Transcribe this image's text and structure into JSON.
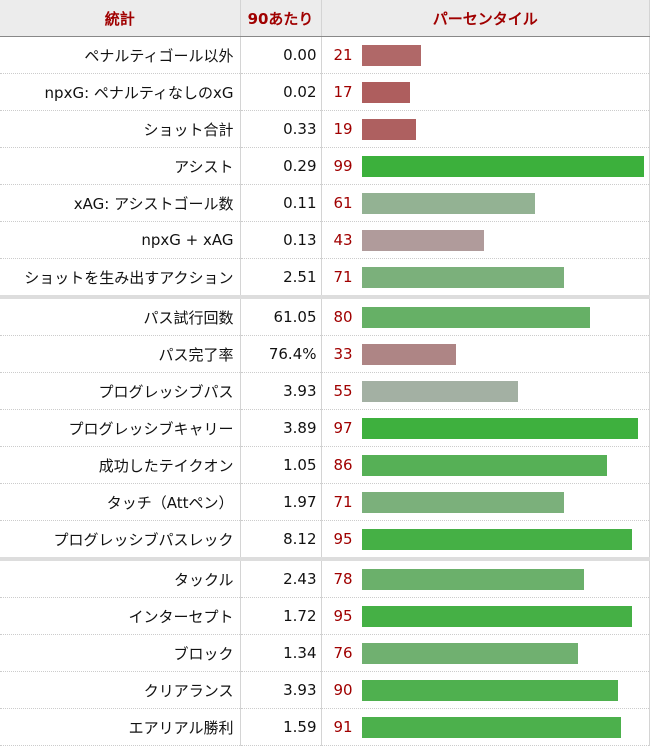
{
  "header": {
    "stat": "統計",
    "per90": "90あたり",
    "percentile": "パーセンタイル"
  },
  "rows": [
    {
      "stat": "ペナルティゴール以外",
      "per90": "0.00",
      "pct": 21,
      "color": "#b06868"
    },
    {
      "stat": "npxG: ペナルティなしのxG",
      "per90": "0.02",
      "pct": 17,
      "color": "#ae5e5e"
    },
    {
      "stat": "ショット合計",
      "per90": "0.33",
      "pct": 19,
      "color": "#ae6060"
    },
    {
      "stat": "アシスト",
      "per90": "0.29",
      "pct": 99,
      "color": "#3cb03c"
    },
    {
      "stat": "xAG: アシストゴール数",
      "per90": "0.11",
      "pct": 61,
      "color": "#93b293"
    },
    {
      "stat": "npxG + xAG",
      "per90": "0.13",
      "pct": 43,
      "color": "#b09b9b"
    },
    {
      "stat": "ショットを生み出すアクション",
      "per90": "2.51",
      "pct": 71,
      "color": "#7bb07b"
    },
    {
      "stat": "パス試行回数",
      "per90": "61.05",
      "pct": 80,
      "color": "#66b066",
      "sep": true
    },
    {
      "stat": "パス完了率",
      "per90": "76.4%",
      "pct": 33,
      "color": "#ae8585"
    },
    {
      "stat": "プログレッシブパス",
      "per90": "3.93",
      "pct": 55,
      "color": "#a3b0a3"
    },
    {
      "stat": "プログレッシブキャリー",
      "per90": "3.89",
      "pct": 97,
      "color": "#3eb03e"
    },
    {
      "stat": "成功したテイクオン",
      "per90": "1.05",
      "pct": 86,
      "color": "#56b056"
    },
    {
      "stat": "タッチ（Attペン）",
      "per90": "1.97",
      "pct": 71,
      "color": "#7bb07b"
    },
    {
      "stat": "プログレッシブパスレック",
      "per90": "8.12",
      "pct": 95,
      "color": "#45b045"
    },
    {
      "stat": "タックル",
      "per90": "2.43",
      "pct": 78,
      "color": "#6bb06b",
      "sep": true
    },
    {
      "stat": "インターセプト",
      "per90": "1.72",
      "pct": 95,
      "color": "#45b045"
    },
    {
      "stat": "ブロック",
      "per90": "1.34",
      "pct": 76,
      "color": "#70b070"
    },
    {
      "stat": "クリアランス",
      "per90": "3.93",
      "pct": 90,
      "color": "#4fb04f"
    },
    {
      "stat": "エアリアル勝利",
      "per90": "1.59",
      "pct": 91,
      "color": "#4cb04c"
    }
  ]
}
